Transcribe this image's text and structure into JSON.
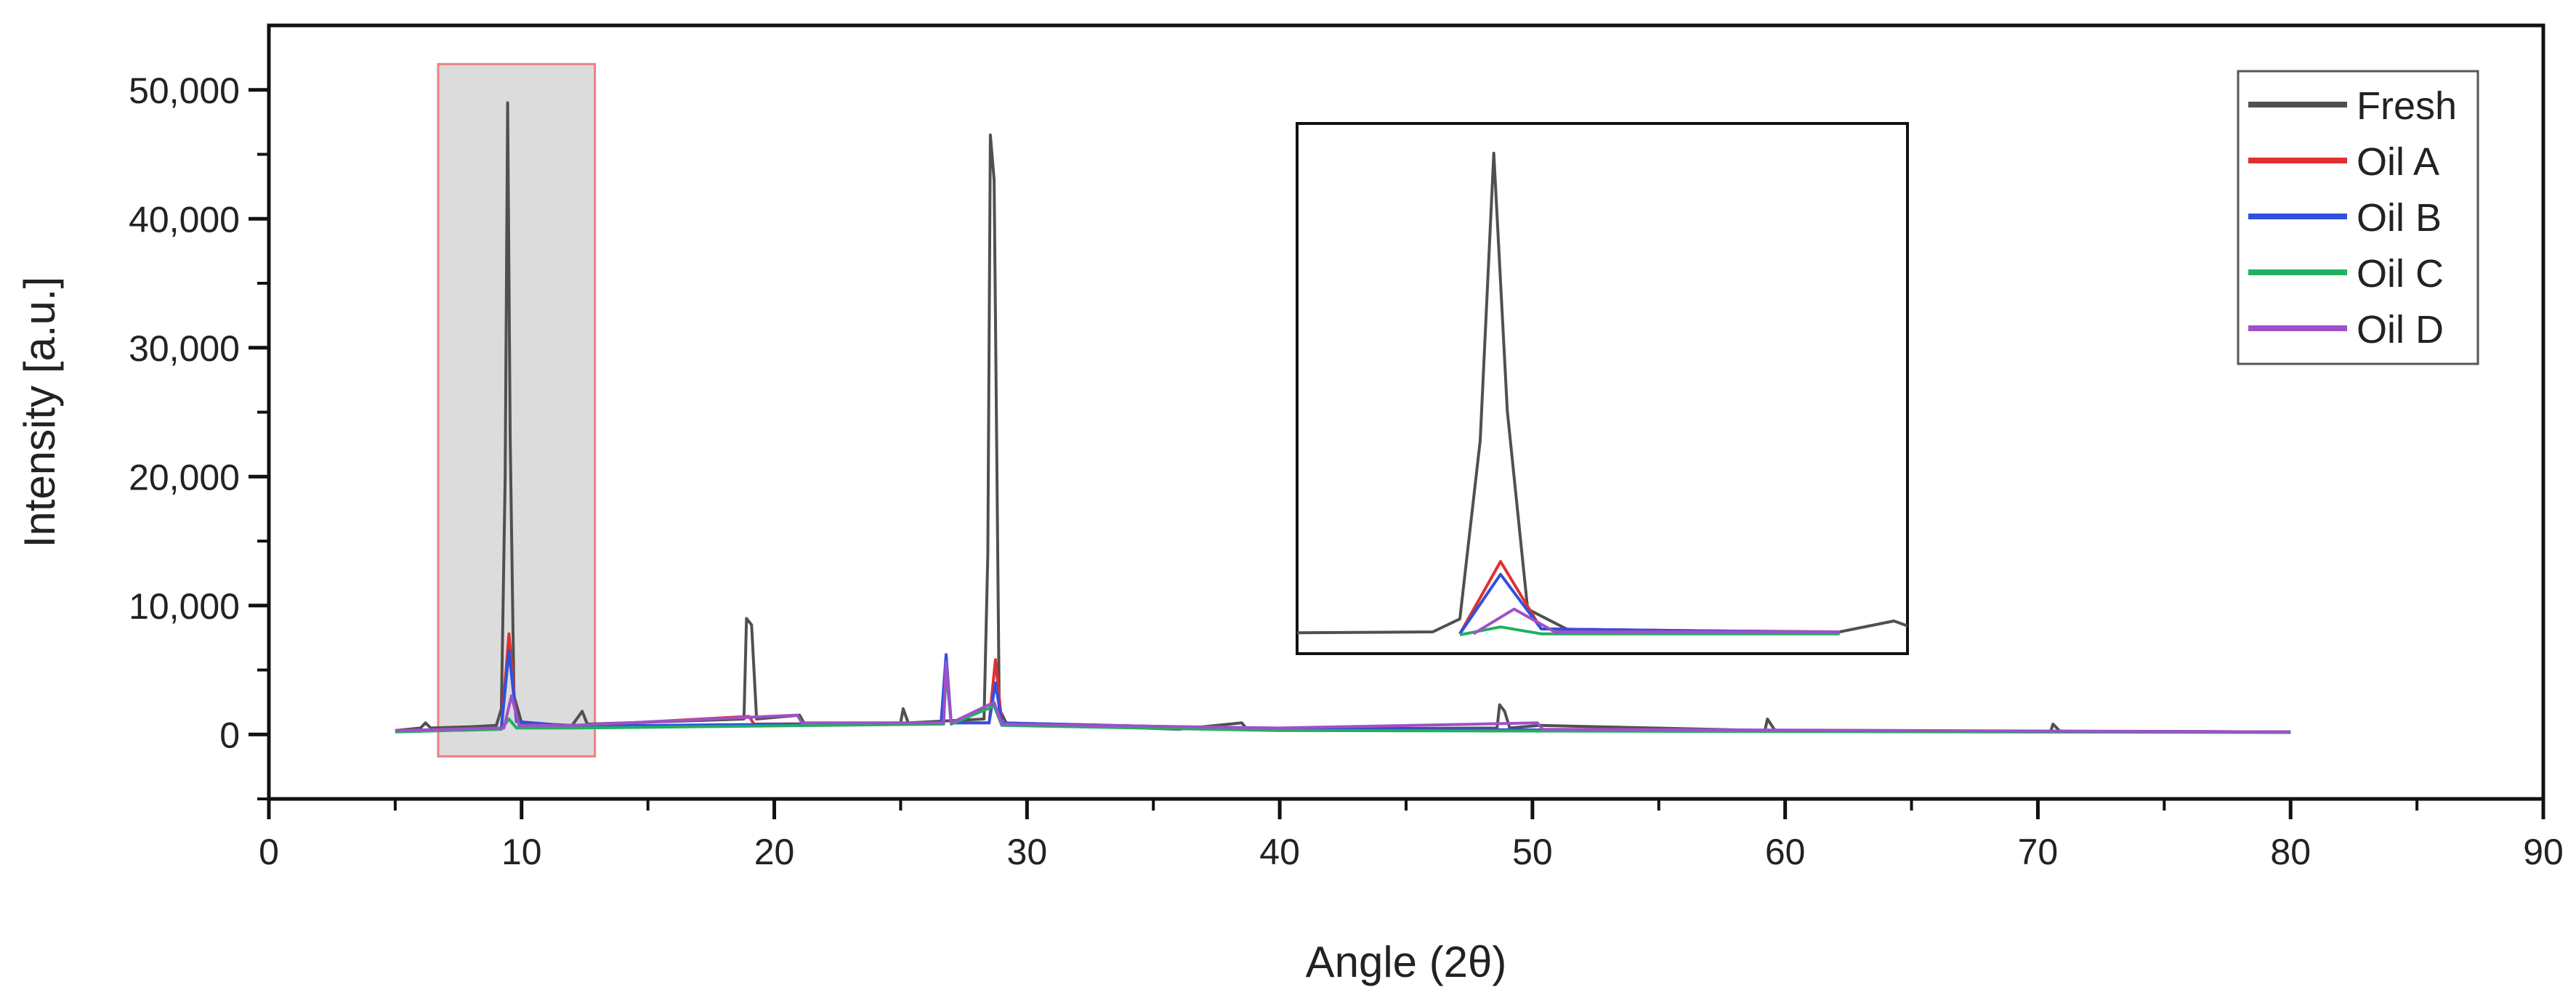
{
  "chart_data": {
    "type": "line",
    "title": "",
    "xlabel": "Angle (2θ)",
    "ylabel": "Intensity [a.u.]",
    "xlim": [
      0,
      90
    ],
    "ylim": [
      -5000,
      55000
    ],
    "x_ticks": [
      0,
      10,
      20,
      30,
      40,
      50,
      60,
      70,
      80,
      90
    ],
    "x_tick_labels": [
      "0",
      "10",
      "20",
      "30",
      "40",
      "50",
      "60",
      "70",
      "80",
      "90"
    ],
    "y_ticks": [
      0,
      10000,
      20000,
      30000,
      40000,
      50000
    ],
    "y_tick_labels": [
      "0",
      "10,000",
      "20,000",
      "30,000",
      "40,000",
      "50,000"
    ],
    "grid": false,
    "legend_position": "top-right",
    "highlight_region": {
      "x_range": [
        6.7,
        12.9
      ],
      "y_range": [
        -1700,
        52000
      ],
      "fill": "#dcdcdc",
      "stroke": "#f08080"
    },
    "inset": {
      "description_source": "zoom of highlighted region",
      "x_range": [
        8.0,
        12.5
      ],
      "y_range": [
        -1500,
        52000
      ]
    },
    "series": [
      {
        "name": "Fresh",
        "color": "#505050",
        "points": [
          [
            5,
            300
          ],
          [
            6,
            500
          ],
          [
            6.2,
            900
          ],
          [
            6.4,
            500
          ],
          [
            8,
            600
          ],
          [
            9,
            700
          ],
          [
            9.2,
            2000
          ],
          [
            9.35,
            20000
          ],
          [
            9.45,
            49000
          ],
          [
            9.55,
            23000
          ],
          [
            9.7,
            3000
          ],
          [
            10,
            900
          ],
          [
            12,
            700
          ],
          [
            12.4,
            1800
          ],
          [
            12.6,
            800
          ],
          [
            18.8,
            1200
          ],
          [
            18.9,
            9000
          ],
          [
            19.1,
            8500
          ],
          [
            19.3,
            1200
          ],
          [
            21,
            1500
          ],
          [
            21.2,
            800
          ],
          [
            25,
            900
          ],
          [
            25.1,
            2000
          ],
          [
            25.3,
            900
          ],
          [
            28.3,
            1200
          ],
          [
            28.45,
            14000
          ],
          [
            28.55,
            46500
          ],
          [
            28.7,
            43000
          ],
          [
            28.9,
            2000
          ],
          [
            29.2,
            800
          ],
          [
            31.5,
            700
          ],
          [
            36,
            400
          ],
          [
            38.5,
            900
          ],
          [
            38.7,
            400
          ],
          [
            48.6,
            500
          ],
          [
            48.7,
            2300
          ],
          [
            48.9,
            1800
          ],
          [
            49.1,
            500
          ],
          [
            50.3,
            700
          ],
          [
            59.2,
            300
          ],
          [
            59.3,
            1200
          ],
          [
            59.6,
            300
          ],
          [
            70.5,
            200
          ],
          [
            70.6,
            800
          ],
          [
            70.9,
            200
          ],
          [
            80,
            200
          ]
        ]
      },
      {
        "name": "Oil A",
        "color": "#e03030",
        "points": [
          [
            5,
            250
          ],
          [
            9.2,
            500
          ],
          [
            9.5,
            7800
          ],
          [
            9.8,
            1000
          ],
          [
            12,
            650
          ],
          [
            19,
            1400
          ],
          [
            19.2,
            800
          ],
          [
            26.6,
            900
          ],
          [
            26.8,
            5500
          ],
          [
            27,
            900
          ],
          [
            28.5,
            900
          ],
          [
            28.75,
            5800
          ],
          [
            29,
            900
          ],
          [
            40,
            400
          ],
          [
            80,
            200
          ]
        ]
      },
      {
        "name": "Oil B",
        "color": "#3050e0",
        "points": [
          [
            5,
            250
          ],
          [
            9.2,
            500
          ],
          [
            9.5,
            6500
          ],
          [
            9.8,
            1000
          ],
          [
            12,
            650
          ],
          [
            26.6,
            900
          ],
          [
            26.8,
            6200
          ],
          [
            27,
            900
          ],
          [
            28.5,
            900
          ],
          [
            28.75,
            4000
          ],
          [
            29,
            900
          ],
          [
            40,
            400
          ],
          [
            80,
            200
          ]
        ]
      },
      {
        "name": "Oil C",
        "color": "#20b060",
        "points": [
          [
            5,
            200
          ],
          [
            9.2,
            400
          ],
          [
            9.5,
            1200
          ],
          [
            9.8,
            500
          ],
          [
            12,
            500
          ],
          [
            26.7,
            800
          ],
          [
            26.8,
            5000
          ],
          [
            27,
            800
          ],
          [
            28.7,
            2200
          ],
          [
            29,
            700
          ],
          [
            40,
            300
          ],
          [
            80,
            150
          ]
        ]
      },
      {
        "name": "Oil D",
        "color": "#a050c8",
        "points": [
          [
            5,
            300
          ],
          [
            9.3,
            500
          ],
          [
            9.6,
            3000
          ],
          [
            9.9,
            700
          ],
          [
            12,
            700
          ],
          [
            20.9,
            1500
          ],
          [
            21.1,
            900
          ],
          [
            26.7,
            900
          ],
          [
            26.8,
            5600
          ],
          [
            27,
            900
          ],
          [
            28.7,
            2500
          ],
          [
            29,
            800
          ],
          [
            40,
            500
          ],
          [
            50.2,
            900
          ],
          [
            50.4,
            400
          ],
          [
            80,
            200
          ]
        ]
      }
    ]
  }
}
